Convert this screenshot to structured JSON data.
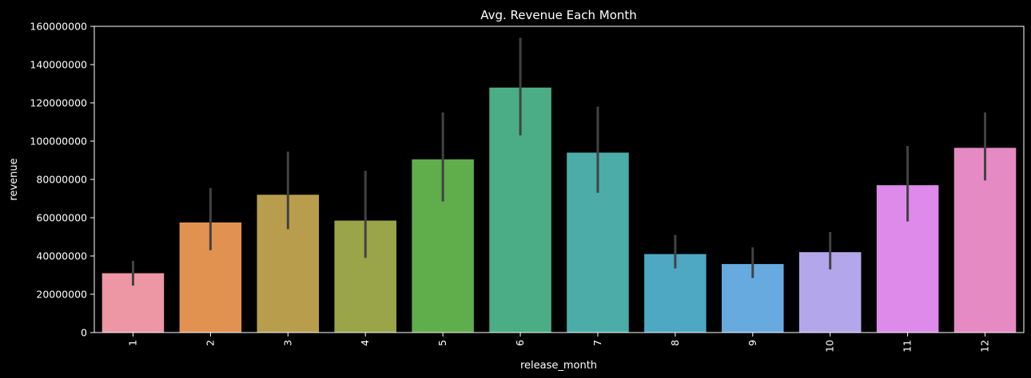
{
  "chart_data": {
    "type": "bar",
    "title": "Avg. Revenue Each Month",
    "xlabel": "release_month",
    "ylabel": "revenue",
    "categories": [
      "1",
      "2",
      "3",
      "4",
      "5",
      "6",
      "7",
      "8",
      "9",
      "10",
      "11",
      "12"
    ],
    "values": [
      31000000,
      57500000,
      72000000,
      58500000,
      90500000,
      128000000,
      94000000,
      41000000,
      35800000,
      42000000,
      77000000,
      96500000
    ],
    "error_low": [
      24500000,
      43000000,
      54000000,
      39000000,
      68500000,
      103000000,
      73000000,
      33500000,
      28500000,
      33000000,
      58000000,
      79500000
    ],
    "error_high": [
      37500000,
      75500000,
      94500000,
      84500000,
      115000000,
      154000000,
      118000000,
      51000000,
      44500000,
      52500000,
      97500000,
      115000000
    ],
    "ylim": [
      0,
      160000000
    ],
    "yticks": [
      0,
      20000000,
      40000000,
      60000000,
      80000000,
      100000000,
      120000000,
      140000000,
      160000000
    ],
    "ytick_labels": [
      "0",
      "20000000",
      "40000000",
      "60000000",
      "80000000",
      "100000000",
      "120000000",
      "140000000",
      "160000000"
    ],
    "grid": false,
    "colors": [
      "#ec97a3",
      "#e29250",
      "#b89d4c",
      "#9aa448",
      "#60ad4b",
      "#4bad85",
      "#4cada8",
      "#4ea7c3",
      "#67aae0",
      "#b4a6eb",
      "#de8aea",
      "#e68ac3"
    ],
    "error_color": "#424242",
    "background": "#000000",
    "foreground": "#ffffff"
  }
}
